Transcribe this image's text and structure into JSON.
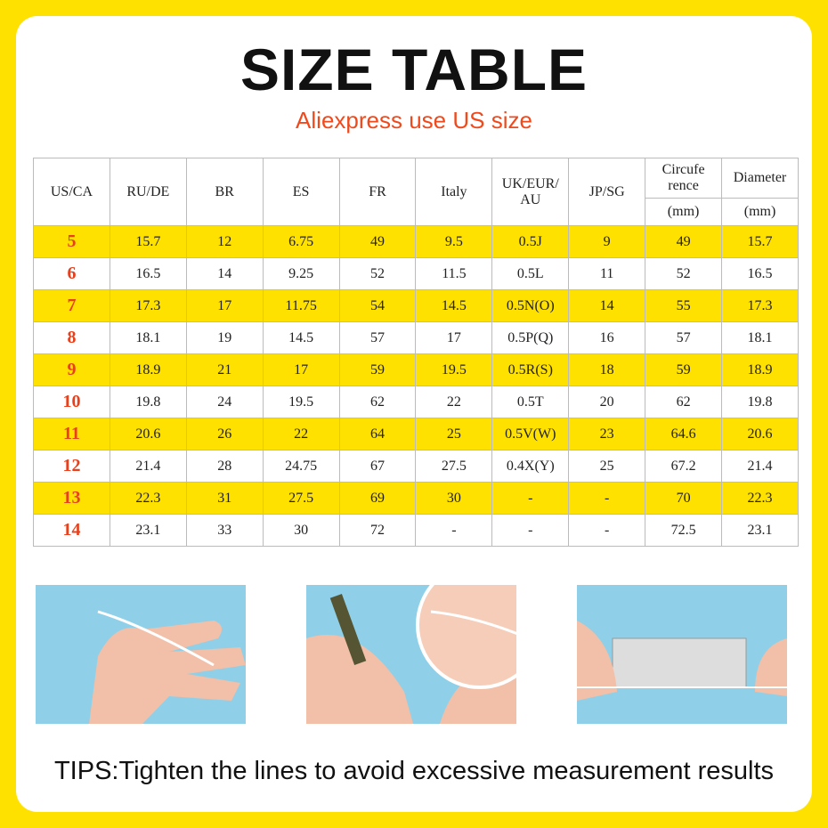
{
  "header": {
    "title": "SIZE TABLE",
    "subtitle": "Aliexpress use US size"
  },
  "table": {
    "headers": [
      {
        "label": "US/CA"
      },
      {
        "label": "RU/DE"
      },
      {
        "label": "BR"
      },
      {
        "label": "ES"
      },
      {
        "label": "FR"
      },
      {
        "label": "Italy"
      },
      {
        "label": "UK/EUR/ AU"
      },
      {
        "label": "JP/SG"
      },
      {
        "label": "Circufe rence",
        "unit": "(mm)"
      },
      {
        "label": "Diameter",
        "unit": "(mm)"
      }
    ],
    "rows": [
      [
        "5",
        "15.7",
        "12",
        "6.75",
        "49",
        "9.5",
        "0.5J",
        "9",
        "49",
        "15.7"
      ],
      [
        "6",
        "16.5",
        "14",
        "9.25",
        "52",
        "11.5",
        "0.5L",
        "11",
        "52",
        "16.5"
      ],
      [
        "7",
        "17.3",
        "17",
        "11.75",
        "54",
        "14.5",
        "0.5N(O)",
        "14",
        "55",
        "17.3"
      ],
      [
        "8",
        "18.1",
        "19",
        "14.5",
        "57",
        "17",
        "0.5P(Q)",
        "16",
        "57",
        "18.1"
      ],
      [
        "9",
        "18.9",
        "21",
        "17",
        "59",
        "19.5",
        "0.5R(S)",
        "18",
        "59",
        "18.9"
      ],
      [
        "10",
        "19.8",
        "24",
        "19.5",
        "62",
        "22",
        "0.5T",
        "20",
        "62",
        "19.8"
      ],
      [
        "11",
        "20.6",
        "26",
        "22",
        "64",
        "25",
        "0.5V(W)",
        "23",
        "64.6",
        "20.6"
      ],
      [
        "12",
        "21.4",
        "28",
        "24.75",
        "67",
        "27.5",
        "0.4X(Y)",
        "25",
        "67.2",
        "21.4"
      ],
      [
        "13",
        "22.3",
        "31",
        "27.5",
        "69",
        "30",
        "-",
        "-",
        "70",
        "22.3"
      ],
      [
        "14",
        "23.1",
        "33",
        "30",
        "72",
        "-",
        "-",
        "-",
        "72.5",
        "23.1"
      ]
    ]
  },
  "footer": {
    "tips": "TIPS:Tighten the lines to avoid excessive measurement results"
  }
}
